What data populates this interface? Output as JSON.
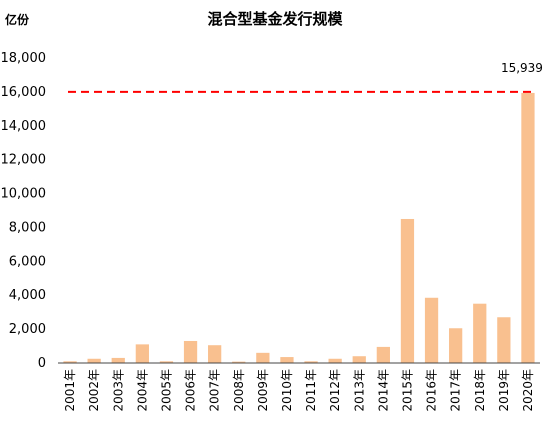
{
  "chart_data": {
    "type": "bar",
    "title": "混合型基金发行规模",
    "unit_label": "亿份",
    "categories": [
      "2001年",
      "2002年",
      "2003年",
      "2004年",
      "2005年",
      "2006年",
      "2007年",
      "2008年",
      "2009年",
      "2010年",
      "2011年",
      "2012年",
      "2013年",
      "2014年",
      "2015年",
      "2016年",
      "2017年",
      "2018年",
      "2019年",
      "2020年"
    ],
    "values": [
      100,
      250,
      300,
      1100,
      100,
      1300,
      1050,
      80,
      600,
      350,
      100,
      250,
      400,
      950,
      8500,
      3850,
      2050,
      3500,
      2700,
      15939
    ],
    "ylim": [
      0,
      18000
    ],
    "yticks": [
      "0",
      "2,000",
      "4,000",
      "6,000",
      "8,000",
      "10,000",
      "12,000",
      "14,000",
      "16,000",
      "18,000"
    ],
    "reference_line": {
      "value": 15939,
      "label": "15,939",
      "color": "#ff0000"
    },
    "bar_color": "#f9c08f",
    "grid": false,
    "legend": "none"
  }
}
